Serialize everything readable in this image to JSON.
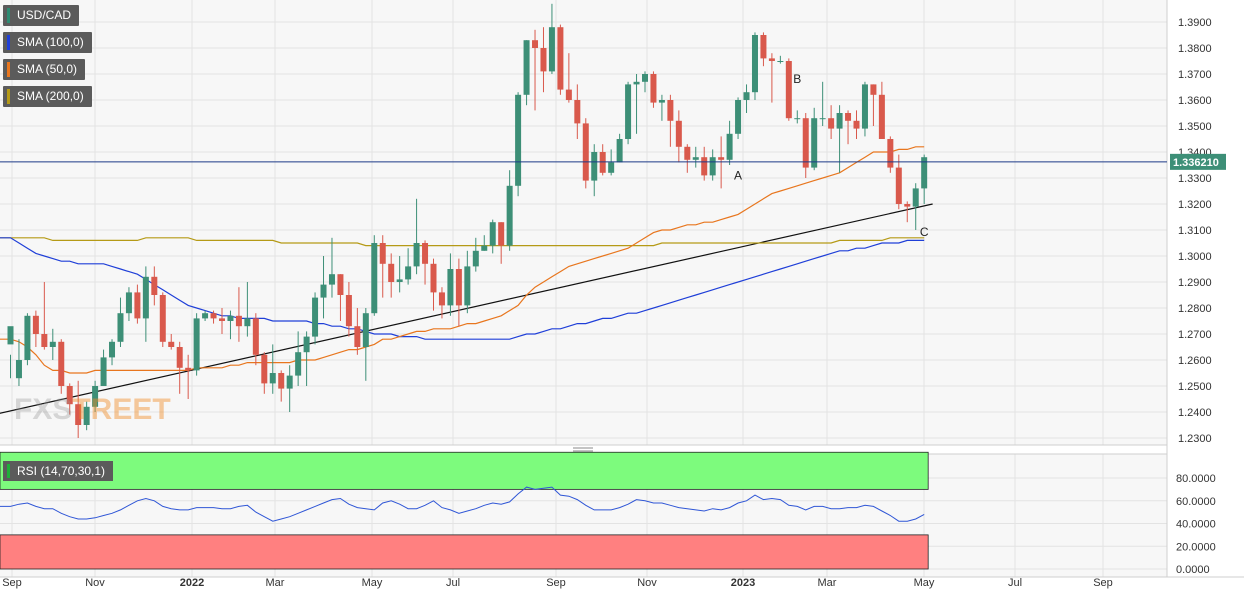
{
  "legends": [
    {
      "label": "USD/CAD",
      "color": "#2e8b72"
    },
    {
      "label": "SMA (100,0)",
      "color": "#1f3fd8"
    },
    {
      "label": "SMA (50,0)",
      "color": "#e8761e"
    },
    {
      "label": "SMA (200,0)",
      "color": "#b59a16"
    }
  ],
  "rsi_label": "RSI (14,70,30,1)",
  "current_price": "1.336210",
  "watermark": {
    "left": "FXS",
    "right": "TREET"
  },
  "colors": {
    "up": "#3d8f77",
    "down": "#d9594c",
    "sma100": "#1f3fd8",
    "sma50": "#e8761e",
    "sma200": "#b59a16",
    "trend": "#111111",
    "rsi": "#2f56d6",
    "overbought": "#7dfb7d",
    "oversold": "#ff8080",
    "price_line": "#1d3a87"
  },
  "chart_data": {
    "type": "candlestick",
    "price_axis": {
      "min": 1.225,
      "max": 1.395,
      "ticks": [
        "1.3900",
        "1.3800",
        "1.3700",
        "1.3600",
        "1.3500",
        "1.3400",
        "1.3300",
        "1.3200",
        "1.3100",
        "1.3000",
        "1.2900",
        "1.2800",
        "1.2700",
        "1.2600",
        "1.2500",
        "1.2400",
        "1.2300"
      ]
    },
    "time_axis": {
      "labels": [
        "Sep",
        "Nov",
        "2022",
        "Mar",
        "May",
        "Jul",
        "Sep",
        "Nov",
        "2023",
        "Mar",
        "May",
        "Jul",
        "Sep"
      ],
      "bold": [
        "2022",
        "2023"
      ]
    },
    "rsi_axis": {
      "min": 0,
      "max": 100,
      "ticks": [
        "80.0000",
        "60.0000",
        "40.0000",
        "20.0000",
        "0.0000"
      ],
      "overbought": 70,
      "oversold": 30
    },
    "candles": [
      [
        1.266,
        1.273,
        1.262,
        1.253
      ],
      [
        1.253,
        1.26,
        1.268,
        1.25
      ],
      [
        1.26,
        1.277,
        1.278,
        1.258
      ],
      [
        1.277,
        1.27,
        1.279,
        1.265
      ],
      [
        1.27,
        1.265,
        1.29,
        1.264
      ],
      [
        1.265,
        1.267,
        1.272,
        1.26
      ],
      [
        1.267,
        1.25,
        1.268,
        1.247
      ],
      [
        1.25,
        1.243,
        1.251,
        1.239
      ],
      [
        1.243,
        1.235,
        1.252,
        1.23
      ],
      [
        1.235,
        1.242,
        1.244,
        1.233
      ],
      [
        1.242,
        1.25,
        1.252,
        1.24
      ],
      [
        1.25,
        1.261,
        1.264,
        1.25
      ],
      [
        1.261,
        1.267,
        1.268,
        1.258
      ],
      [
        1.267,
        1.278,
        1.284,
        1.265
      ],
      [
        1.278,
        1.286,
        1.288,
        1.275
      ],
      [
        1.286,
        1.276,
        1.289,
        1.274
      ],
      [
        1.276,
        1.292,
        1.296,
        1.267
      ],
      [
        1.292,
        1.285,
        1.296,
        1.281
      ],
      [
        1.285,
        1.267,
        1.286,
        1.265
      ],
      [
        1.267,
        1.265,
        1.27,
        1.264
      ],
      [
        1.265,
        1.257,
        1.267,
        1.247
      ],
      [
        1.257,
        1.256,
        1.262,
        1.245
      ],
      [
        1.256,
        1.276,
        1.278,
        1.254
      ],
      [
        1.276,
        1.278,
        1.279,
        1.275
      ],
      [
        1.278,
        1.276,
        1.279,
        1.274
      ],
      [
        1.276,
        1.275,
        1.28,
        1.27
      ],
      [
        1.275,
        1.277,
        1.279,
        1.268
      ],
      [
        1.277,
        1.273,
        1.288,
        1.267
      ],
      [
        1.273,
        1.276,
        1.29,
        1.269
      ],
      [
        1.276,
        1.262,
        1.278,
        1.258
      ],
      [
        1.262,
        1.251,
        1.263,
        1.247
      ],
      [
        1.251,
        1.255,
        1.266,
        1.247
      ],
      [
        1.255,
        1.249,
        1.256,
        1.244
      ],
      [
        1.249,
        1.254,
        1.258,
        1.24
      ],
      [
        1.254,
        1.263,
        1.271,
        1.25
      ],
      [
        1.263,
        1.269,
        1.271,
        1.25
      ],
      [
        1.269,
        1.284,
        1.286,
        1.266
      ],
      [
        1.284,
        1.289,
        1.3,
        1.276
      ],
      [
        1.289,
        1.293,
        1.307,
        1.284
      ],
      [
        1.293,
        1.285,
        1.293,
        1.275
      ],
      [
        1.285,
        1.273,
        1.29,
        1.269
      ],
      [
        1.273,
        1.265,
        1.28,
        1.262
      ],
      [
        1.265,
        1.278,
        1.28,
        1.252
      ],
      [
        1.278,
        1.305,
        1.308,
        1.277
      ],
      [
        1.305,
        1.297,
        1.308,
        1.284
      ],
      [
        1.297,
        1.29,
        1.301,
        1.284
      ],
      [
        1.29,
        1.291,
        1.3,
        1.286
      ],
      [
        1.291,
        1.296,
        1.303,
        1.289
      ],
      [
        1.296,
        1.305,
        1.322,
        1.293
      ],
      [
        1.305,
        1.297,
        1.306,
        1.289
      ],
      [
        1.297,
        1.286,
        1.299,
        1.279
      ],
      [
        1.286,
        1.281,
        1.288,
        1.276
      ],
      [
        1.281,
        1.295,
        1.301,
        1.277
      ],
      [
        1.295,
        1.281,
        1.299,
        1.273
      ],
      [
        1.281,
        1.296,
        1.302,
        1.278
      ],
      [
        1.296,
        1.302,
        1.307,
        1.294
      ],
      [
        1.302,
        1.304,
        1.308,
        1.302
      ],
      [
        1.304,
        1.313,
        1.314,
        1.301
      ],
      [
        1.313,
        1.304,
        1.313,
        1.297
      ],
      [
        1.304,
        1.327,
        1.333,
        1.302
      ],
      [
        1.327,
        1.362,
        1.363,
        1.323
      ],
      [
        1.362,
        1.383,
        1.383,
        1.358
      ],
      [
        1.383,
        1.38,
        1.387,
        1.356
      ],
      [
        1.38,
        1.371,
        1.388,
        1.363
      ],
      [
        1.371,
        1.388,
        1.397,
        1.37
      ],
      [
        1.388,
        1.364,
        1.389,
        1.362
      ],
      [
        1.364,
        1.36,
        1.378,
        1.359
      ],
      [
        1.36,
        1.351,
        1.366,
        1.345
      ],
      [
        1.351,
        1.329,
        1.353,
        1.326
      ],
      [
        1.329,
        1.34,
        1.343,
        1.323
      ],
      [
        1.34,
        1.332,
        1.343,
        1.331
      ],
      [
        1.332,
        1.336,
        1.341,
        1.331
      ],
      [
        1.336,
        1.345,
        1.347,
        1.336
      ],
      [
        1.345,
        1.366,
        1.367,
        1.343
      ],
      [
        1.366,
        1.367,
        1.37,
        1.347
      ],
      [
        1.367,
        1.37,
        1.371,
        1.363
      ],
      [
        1.37,
        1.359,
        1.371,
        1.357
      ],
      [
        1.359,
        1.36,
        1.362,
        1.352
      ],
      [
        1.36,
        1.352,
        1.362,
        1.342
      ],
      [
        1.352,
        1.342,
        1.356,
        1.336
      ],
      [
        1.342,
        1.337,
        1.343,
        1.332
      ],
      [
        1.337,
        1.338,
        1.342,
        1.334
      ],
      [
        1.338,
        1.331,
        1.342,
        1.329
      ],
      [
        1.331,
        1.338,
        1.341,
        1.329
      ],
      [
        1.338,
        1.337,
        1.346,
        1.326
      ],
      [
        1.337,
        1.347,
        1.352,
        1.335
      ],
      [
        1.347,
        1.36,
        1.361,
        1.345
      ],
      [
        1.36,
        1.363,
        1.366,
        1.355
      ],
      [
        1.363,
        1.385,
        1.386,
        1.36
      ],
      [
        1.385,
        1.376,
        1.386,
        1.373
      ],
      [
        1.376,
        1.375,
        1.378,
        1.359
      ],
      [
        1.375,
        1.375,
        1.377,
        1.374
      ],
      [
        1.375,
        1.353,
        1.376,
        1.352
      ],
      [
        1.353,
        1.353,
        1.356,
        1.351
      ],
      [
        1.353,
        1.334,
        1.355,
        1.33
      ],
      [
        1.334,
        1.353,
        1.357,
        1.333
      ],
      [
        1.353,
        1.353,
        1.367,
        1.35
      ],
      [
        1.353,
        1.349,
        1.358,
        1.345
      ],
      [
        1.349,
        1.355,
        1.358,
        1.332
      ],
      [
        1.355,
        1.352,
        1.356,
        1.343
      ],
      [
        1.352,
        1.349,
        1.356,
        1.345
      ],
      [
        1.349,
        1.366,
        1.367,
        1.346
      ],
      [
        1.366,
        1.362,
        1.366,
        1.35
      ],
      [
        1.362,
        1.345,
        1.367,
        1.345
      ],
      [
        1.345,
        1.334,
        1.346,
        1.332
      ],
      [
        1.334,
        1.32,
        1.339,
        1.318
      ],
      [
        1.32,
        1.319,
        1.321,
        1.313
      ],
      [
        1.319,
        1.326,
        1.328,
        1.31
      ],
      [
        1.326,
        1.338,
        1.339,
        1.32
      ]
    ],
    "sma50": [
      1.268,
      1.267,
      1.265,
      1.262,
      1.258,
      1.256,
      1.256,
      1.255,
      1.255,
      1.255,
      1.256,
      1.256,
      1.256,
      1.256,
      1.256,
      1.256,
      1.256,
      1.256,
      1.256,
      1.256,
      1.256,
      1.256,
      1.257,
      1.257,
      1.257,
      1.257,
      1.258,
      1.258,
      1.259,
      1.259,
      1.259,
      1.259,
      1.259,
      1.259,
      1.26,
      1.26,
      1.26,
      1.261,
      1.262,
      1.263,
      1.264,
      1.264,
      1.265,
      1.266,
      1.268,
      1.268,
      1.269,
      1.27,
      1.271,
      1.271,
      1.272,
      1.272,
      1.272,
      1.273,
      1.274,
      1.274,
      1.275,
      1.276,
      1.277,
      1.279,
      1.281,
      1.285,
      1.288,
      1.29,
      1.292,
      1.294,
      1.296,
      1.297,
      1.298,
      1.299,
      1.3,
      1.301,
      1.302,
      1.303,
      1.305,
      1.307,
      1.309,
      1.31,
      1.31,
      1.311,
      1.312,
      1.312,
      1.313,
      1.313,
      1.314,
      1.315,
      1.316,
      1.318,
      1.32,
      1.322,
      1.324,
      1.325,
      1.326,
      1.327,
      1.328,
      1.329,
      1.33,
      1.331,
      1.332,
      1.334,
      1.336,
      1.338,
      1.34,
      1.34,
      1.34,
      1.341,
      1.341,
      1.342,
      1.342
    ],
    "sma100": [
      1.307,
      1.305,
      1.303,
      1.301,
      1.3,
      1.299,
      1.298,
      1.298,
      1.297,
      1.297,
      1.297,
      1.297,
      1.296,
      1.295,
      1.294,
      1.293,
      1.291,
      1.289,
      1.287,
      1.285,
      1.283,
      1.281,
      1.28,
      1.279,
      1.278,
      1.277,
      1.277,
      1.276,
      1.276,
      1.276,
      1.276,
      1.275,
      1.275,
      1.275,
      1.275,
      1.275,
      1.274,
      1.274,
      1.273,
      1.273,
      1.272,
      1.272,
      1.271,
      1.27,
      1.27,
      1.27,
      1.269,
      1.269,
      1.269,
      1.268,
      1.268,
      1.268,
      1.268,
      1.268,
      1.268,
      1.268,
      1.268,
      1.268,
      1.268,
      1.268,
      1.269,
      1.27,
      1.27,
      1.271,
      1.272,
      1.272,
      1.273,
      1.274,
      1.274,
      1.275,
      1.276,
      1.276,
      1.277,
      1.278,
      1.278,
      1.279,
      1.28,
      1.281,
      1.282,
      1.283,
      1.284,
      1.285,
      1.286,
      1.287,
      1.288,
      1.289,
      1.29,
      1.291,
      1.292,
      1.293,
      1.294,
      1.295,
      1.296,
      1.297,
      1.298,
      1.299,
      1.3,
      1.301,
      1.302,
      1.302,
      1.303,
      1.303,
      1.304,
      1.305,
      1.305,
      1.305,
      1.306,
      1.306,
      1.306
    ],
    "sma200": [
      1.307,
      1.307,
      1.307,
      1.307,
      1.307,
      1.306,
      1.306,
      1.306,
      1.306,
      1.306,
      1.306,
      1.306,
      1.306,
      1.306,
      1.306,
      1.306,
      1.307,
      1.307,
      1.307,
      1.307,
      1.307,
      1.307,
      1.306,
      1.306,
      1.306,
      1.306,
      1.306,
      1.306,
      1.306,
      1.306,
      1.306,
      1.306,
      1.305,
      1.305,
      1.305,
      1.305,
      1.305,
      1.305,
      1.305,
      1.305,
      1.305,
      1.305,
      1.304,
      1.304,
      1.304,
      1.304,
      1.304,
      1.304,
      1.304,
      1.304,
      1.304,
      1.304,
      1.304,
      1.304,
      1.304,
      1.304,
      1.304,
      1.304,
      1.304,
      1.304,
      1.304,
      1.304,
      1.304,
      1.304,
      1.304,
      1.304,
      1.304,
      1.304,
      1.304,
      1.304,
      1.304,
      1.304,
      1.304,
      1.304,
      1.304,
      1.304,
      1.304,
      1.305,
      1.305,
      1.305,
      1.305,
      1.305,
      1.305,
      1.305,
      1.305,
      1.305,
      1.305,
      1.305,
      1.305,
      1.305,
      1.305,
      1.305,
      1.305,
      1.305,
      1.305,
      1.305,
      1.305,
      1.305,
      1.306,
      1.306,
      1.306,
      1.306,
      1.306,
      1.306,
      1.307,
      1.307,
      1.307,
      1.307,
      1.307
    ],
    "rsi": [
      55,
      57,
      58,
      55,
      53,
      53,
      49,
      46,
      44,
      44,
      45,
      47,
      49,
      52,
      56,
      60,
      62,
      60,
      55,
      53,
      52,
      52,
      54,
      54,
      54,
      53,
      53,
      55,
      56,
      50,
      46,
      42,
      44,
      46,
      49,
      52,
      55,
      58,
      61,
      62,
      57,
      54,
      53,
      52,
      58,
      60,
      57,
      53,
      53,
      56,
      60,
      54,
      52,
      49,
      51,
      53,
      56,
      58,
      57,
      59,
      66,
      72,
      70,
      71,
      72,
      65,
      64,
      61,
      56,
      52,
      52,
      52,
      54,
      57,
      61,
      60,
      58,
      58,
      56,
      54,
      53,
      52,
      51,
      53,
      52,
      54,
      58,
      60,
      65,
      61,
      62,
      61,
      56,
      55,
      52,
      55,
      55,
      53,
      53,
      54,
      54,
      56,
      55,
      51,
      47,
      42,
      42,
      44,
      48
    ],
    "trendline": [
      [
        -28,
        1.22
      ],
      [
        109,
        1.32
      ]
    ],
    "annotations": [
      {
        "text": "A",
        "idx": 86,
        "price": 1.3295
      },
      {
        "text": "B",
        "idx": 93,
        "price": 1.3666
      },
      {
        "text": "C",
        "idx": 108,
        "price": 1.3076
      }
    ]
  }
}
